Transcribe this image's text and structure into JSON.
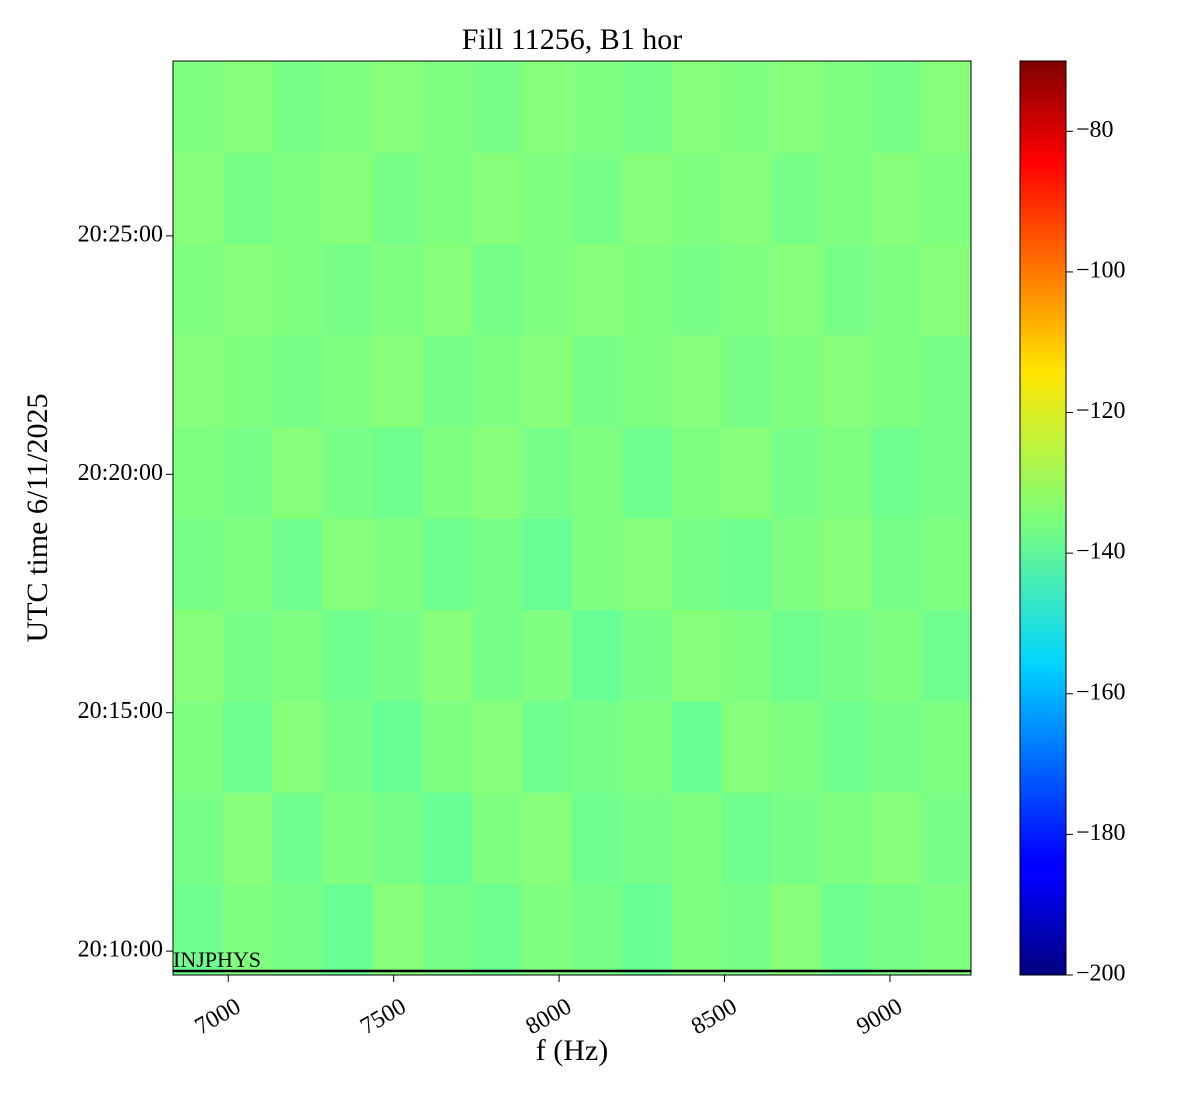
{
  "chart_data": {
    "type": "heatmap",
    "title": "Fill 11256, B1 hor",
    "x_label": "f (Hz)",
    "y_label": "UTC time 6/11/2025",
    "xlim": [
      6833,
      9245
    ],
    "xticks": [
      7000,
      7500,
      8000,
      8500,
      9000
    ],
    "ylim": [
      72570,
      73720
    ],
    "yticks": [
      {
        "value": 72600,
        "label": "20:10:00"
      },
      {
        "value": 72900,
        "label": "20:15:00"
      },
      {
        "value": 73200,
        "label": "20:20:00"
      },
      {
        "value": 73500,
        "label": "20:25:00"
      }
    ],
    "colormap": "jet",
    "zlim": [
      -200,
      -70
    ],
    "zticks": [
      {
        "value": -80,
        "label": "−80"
      },
      {
        "value": -100,
        "label": "−100"
      },
      {
        "value": -120,
        "label": "−120"
      },
      {
        "value": -140,
        "label": "−140"
      },
      {
        "value": -160,
        "label": "−160"
      },
      {
        "value": -180,
        "label": "−180"
      },
      {
        "value": -200,
        "label": "−200"
      }
    ],
    "annotations": [
      {
        "text": "INJPHYS",
        "y": 72575
      }
    ],
    "z": [
      [
        -137,
        -135,
        -136,
        -138,
        -134,
        -136,
        -137,
        -135,
        -136,
        -138,
        -135,
        -136,
        -134,
        -137,
        -136,
        -135
      ],
      [
        -136,
        -134,
        -137,
        -135,
        -136,
        -138,
        -135,
        -134,
        -137,
        -136,
        -135,
        -137,
        -136,
        -135,
        -134,
        -136
      ],
      [
        -135,
        -137,
        -134,
        -136,
        -138,
        -135,
        -134,
        -137,
        -136,
        -135,
        -138,
        -134,
        -135,
        -137,
        -136,
        -135
      ],
      [
        -134,
        -136,
        -135,
        -137,
        -136,
        -134,
        -136,
        -135,
        -138,
        -136,
        -134,
        -135,
        -137,
        -136,
        -135,
        -137
      ],
      [
        -136,
        -135,
        -137,
        -134,
        -135,
        -137,
        -136,
        -138,
        -135,
        -134,
        -136,
        -137,
        -135,
        -134,
        -136,
        -135
      ],
      [
        -135,
        -136,
        -134,
        -136,
        -137,
        -135,
        -134,
        -136,
        -135,
        -137,
        -135,
        -134,
        -136,
        -135,
        -137,
        -136
      ],
      [
        -134,
        -135,
        -136,
        -135,
        -134,
        -136,
        -135,
        -134,
        -136,
        -135,
        -134,
        -136,
        -135,
        -134,
        -135,
        -136
      ],
      [
        -135,
        -134,
        -135,
        -136,
        -135,
        -134,
        -136,
        -135,
        -134,
        -135,
        -136,
        -135,
        -134,
        -136,
        -135,
        -134
      ],
      [
        -134,
        -136,
        -135,
        -134,
        -136,
        -135,
        -134,
        -135,
        -136,
        -134,
        -135,
        -134,
        -136,
        -135,
        -134,
        -135
      ],
      [
        -135,
        -134,
        -136,
        -135,
        -134,
        -135,
        -136,
        -134,
        -135,
        -136,
        -134,
        -135,
        -134,
        -135,
        -136,
        -134
      ]
    ]
  }
}
